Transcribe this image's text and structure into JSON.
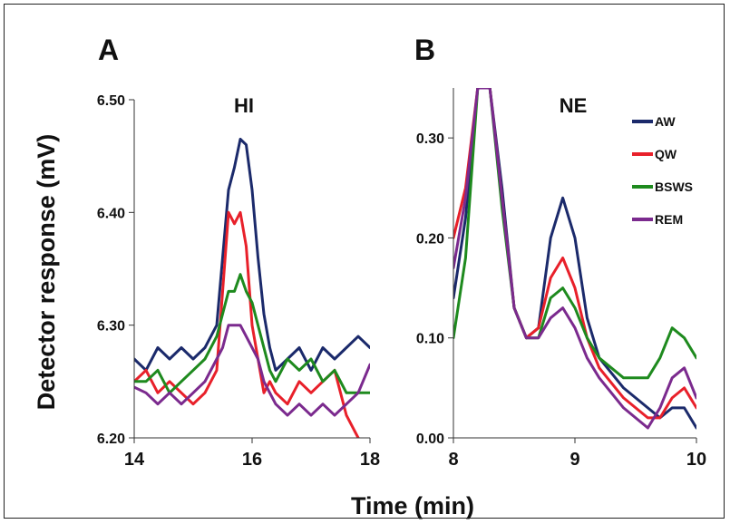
{
  "figure": {
    "ylabel": "Detector response (mV)",
    "xlabel": "Time (min)"
  },
  "chart_data": [
    {
      "panel_label": "A",
      "type": "line",
      "title": "HI",
      "xlim": [
        14,
        18
      ],
      "ylim": [
        6.2,
        6.5
      ],
      "x_ticks": [
        "14",
        "16",
        "18"
      ],
      "y_ticks": [
        "6.20",
        "6.30",
        "6.40",
        "6.50"
      ],
      "grid": false,
      "series": [
        {
          "name": "AW",
          "color": "#1b2a6b",
          "x": [
            14.0,
            14.2,
            14.4,
            14.6,
            14.8,
            15.0,
            15.2,
            15.4,
            15.5,
            15.6,
            15.7,
            15.8,
            15.9,
            16.0,
            16.1,
            16.2,
            16.3,
            16.4,
            16.6,
            16.8,
            17.0,
            17.2,
            17.4,
            17.6,
            17.8,
            18.0
          ],
          "y": [
            6.27,
            6.26,
            6.28,
            6.27,
            6.28,
            6.27,
            6.28,
            6.3,
            6.36,
            6.42,
            6.44,
            6.465,
            6.46,
            6.42,
            6.36,
            6.31,
            6.28,
            6.26,
            6.27,
            6.28,
            6.26,
            6.28,
            6.27,
            6.28,
            6.29,
            6.28
          ]
        },
        {
          "name": "QW",
          "color": "#e8202a",
          "x": [
            14.0,
            14.2,
            14.4,
            14.6,
            14.8,
            15.0,
            15.2,
            15.4,
            15.5,
            15.6,
            15.7,
            15.8,
            15.9,
            16.0,
            16.1,
            16.2,
            16.3,
            16.4,
            16.6,
            16.8,
            17.0,
            17.2,
            17.4,
            17.6,
            17.8,
            18.0
          ],
          "y": [
            6.25,
            6.26,
            6.24,
            6.25,
            6.24,
            6.23,
            6.24,
            6.26,
            6.33,
            6.4,
            6.39,
            6.4,
            6.37,
            6.3,
            6.27,
            6.24,
            6.25,
            6.24,
            6.23,
            6.25,
            6.24,
            6.25,
            6.26,
            6.22,
            6.2,
            6.19
          ]
        },
        {
          "name": "BSWS",
          "color": "#1e8a1e",
          "x": [
            14.0,
            14.2,
            14.4,
            14.6,
            14.8,
            15.0,
            15.2,
            15.4,
            15.5,
            15.6,
            15.7,
            15.8,
            15.9,
            16.0,
            16.1,
            16.2,
            16.3,
            16.4,
            16.6,
            16.8,
            17.0,
            17.2,
            17.4,
            17.6,
            17.8,
            18.0
          ],
          "y": [
            6.25,
            6.25,
            6.26,
            6.24,
            6.25,
            6.26,
            6.27,
            6.29,
            6.31,
            6.33,
            6.33,
            6.345,
            6.33,
            6.32,
            6.3,
            6.28,
            6.26,
            6.25,
            6.27,
            6.26,
            6.27,
            6.25,
            6.26,
            6.24,
            6.24,
            6.24
          ]
        },
        {
          "name": "REM",
          "color": "#7b2a8e",
          "x": [
            14.0,
            14.2,
            14.4,
            14.6,
            14.8,
            15.0,
            15.2,
            15.4,
            15.5,
            15.6,
            15.7,
            15.8,
            15.9,
            16.0,
            16.1,
            16.2,
            16.3,
            16.4,
            16.6,
            16.8,
            17.0,
            17.2,
            17.4,
            17.6,
            17.8,
            18.0
          ],
          "y": [
            6.245,
            6.24,
            6.23,
            6.24,
            6.23,
            6.24,
            6.25,
            6.27,
            6.28,
            6.3,
            6.3,
            6.3,
            6.29,
            6.28,
            6.27,
            6.25,
            6.24,
            6.23,
            6.22,
            6.23,
            6.22,
            6.23,
            6.22,
            6.23,
            6.24,
            6.265
          ]
        }
      ]
    },
    {
      "panel_label": "B",
      "type": "line",
      "title": "NE",
      "xlim": [
        8,
        10
      ],
      "ylim": [
        0.0,
        0.35
      ],
      "x_ticks": [
        "8",
        "9",
        "10"
      ],
      "y_ticks": [
        "0.00",
        "0.10",
        "0.20",
        "0.30"
      ],
      "grid": false,
      "legend": "top-right",
      "series": [
        {
          "name": "AW",
          "color": "#1b2a6b",
          "x": [
            8.0,
            8.1,
            8.2,
            8.3,
            8.4,
            8.5,
            8.6,
            8.7,
            8.8,
            8.9,
            9.0,
            9.1,
            9.2,
            9.4,
            9.6,
            9.7,
            9.8,
            9.9,
            10.0
          ],
          "y": [
            0.14,
            0.22,
            0.35,
            0.35,
            0.25,
            0.13,
            0.1,
            0.11,
            0.2,
            0.24,
            0.2,
            0.12,
            0.08,
            0.05,
            0.03,
            0.02,
            0.03,
            0.03,
            0.01
          ]
        },
        {
          "name": "QW",
          "color": "#e8202a",
          "x": [
            8.0,
            8.1,
            8.2,
            8.3,
            8.4,
            8.5,
            8.6,
            8.7,
            8.8,
            8.9,
            9.0,
            9.1,
            9.2,
            9.4,
            9.6,
            9.7,
            9.8,
            9.9,
            10.0
          ],
          "y": [
            0.2,
            0.25,
            0.35,
            0.35,
            0.24,
            0.13,
            0.1,
            0.11,
            0.16,
            0.18,
            0.15,
            0.1,
            0.07,
            0.04,
            0.02,
            0.02,
            0.04,
            0.05,
            0.03
          ]
        },
        {
          "name": "BSWS",
          "color": "#1e8a1e",
          "x": [
            8.0,
            8.1,
            8.2,
            8.3,
            8.4,
            8.5,
            8.6,
            8.7,
            8.8,
            8.9,
            9.0,
            9.1,
            9.2,
            9.4,
            9.6,
            9.7,
            9.8,
            9.9,
            10.0
          ],
          "y": [
            0.1,
            0.18,
            0.35,
            0.35,
            0.23,
            0.13,
            0.1,
            0.1,
            0.14,
            0.15,
            0.13,
            0.1,
            0.08,
            0.06,
            0.06,
            0.08,
            0.11,
            0.1,
            0.08
          ]
        },
        {
          "name": "REM",
          "color": "#7b2a8e",
          "x": [
            8.0,
            8.1,
            8.2,
            8.3,
            8.4,
            8.5,
            8.6,
            8.7,
            8.8,
            8.9,
            9.0,
            9.1,
            9.2,
            9.4,
            9.6,
            9.7,
            9.8,
            9.9,
            10.0
          ],
          "y": [
            0.17,
            0.24,
            0.35,
            0.35,
            0.24,
            0.13,
            0.1,
            0.1,
            0.12,
            0.13,
            0.11,
            0.08,
            0.06,
            0.03,
            0.01,
            0.03,
            0.06,
            0.07,
            0.04
          ]
        }
      ]
    }
  ]
}
